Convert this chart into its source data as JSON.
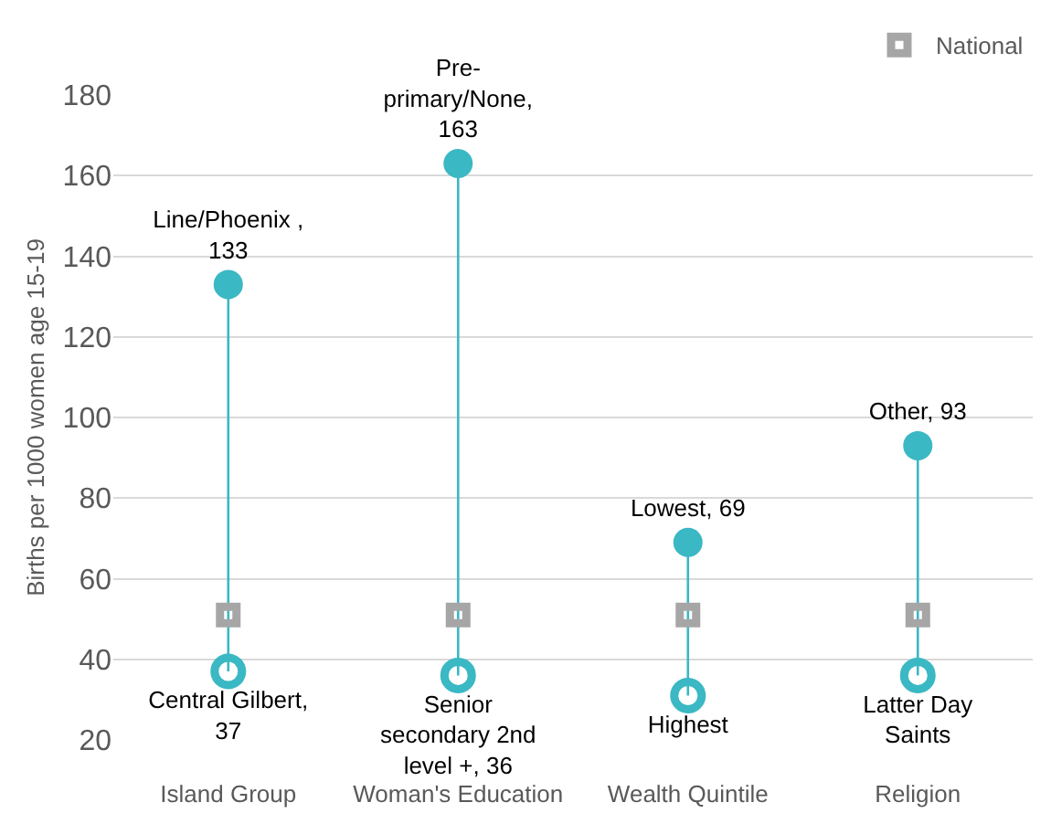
{
  "chart_data": {
    "type": "scatter",
    "ylabel": "Births per 1000 women age 15-19",
    "categories": [
      "Island Group",
      "Woman's Education",
      "Wealth Quintile",
      "Religion"
    ],
    "series": [
      {
        "marker": "circle",
        "color": "#3ab8c4",
        "values": [
          133,
          163,
          69,
          93
        ],
        "value_labels": [
          "Line/Phoenix ,\n133",
          "Pre-\nprimary/None,\n163",
          "Lowest, 69",
          "Other, 93"
        ]
      },
      {
        "marker": "circle",
        "color": "#3ab8c4",
        "values": [
          37,
          36,
          31,
          36
        ],
        "value_labels": [
          "Central Gilbert,\n37",
          "Senior\nsecondary 2nd\nlevel +, 36",
          "Highest",
          "Latter Day\nSaints"
        ]
      },
      {
        "marker": "square",
        "name": "National",
        "color": "#a6a6a6",
        "values": [
          51,
          51,
          51,
          51
        ]
      }
    ],
    "ylim": [
      20,
      180
    ],
    "yticks": [
      20,
      40,
      60,
      80,
      100,
      120,
      140,
      160,
      180
    ],
    "grid": "y",
    "legend": "top right"
  }
}
